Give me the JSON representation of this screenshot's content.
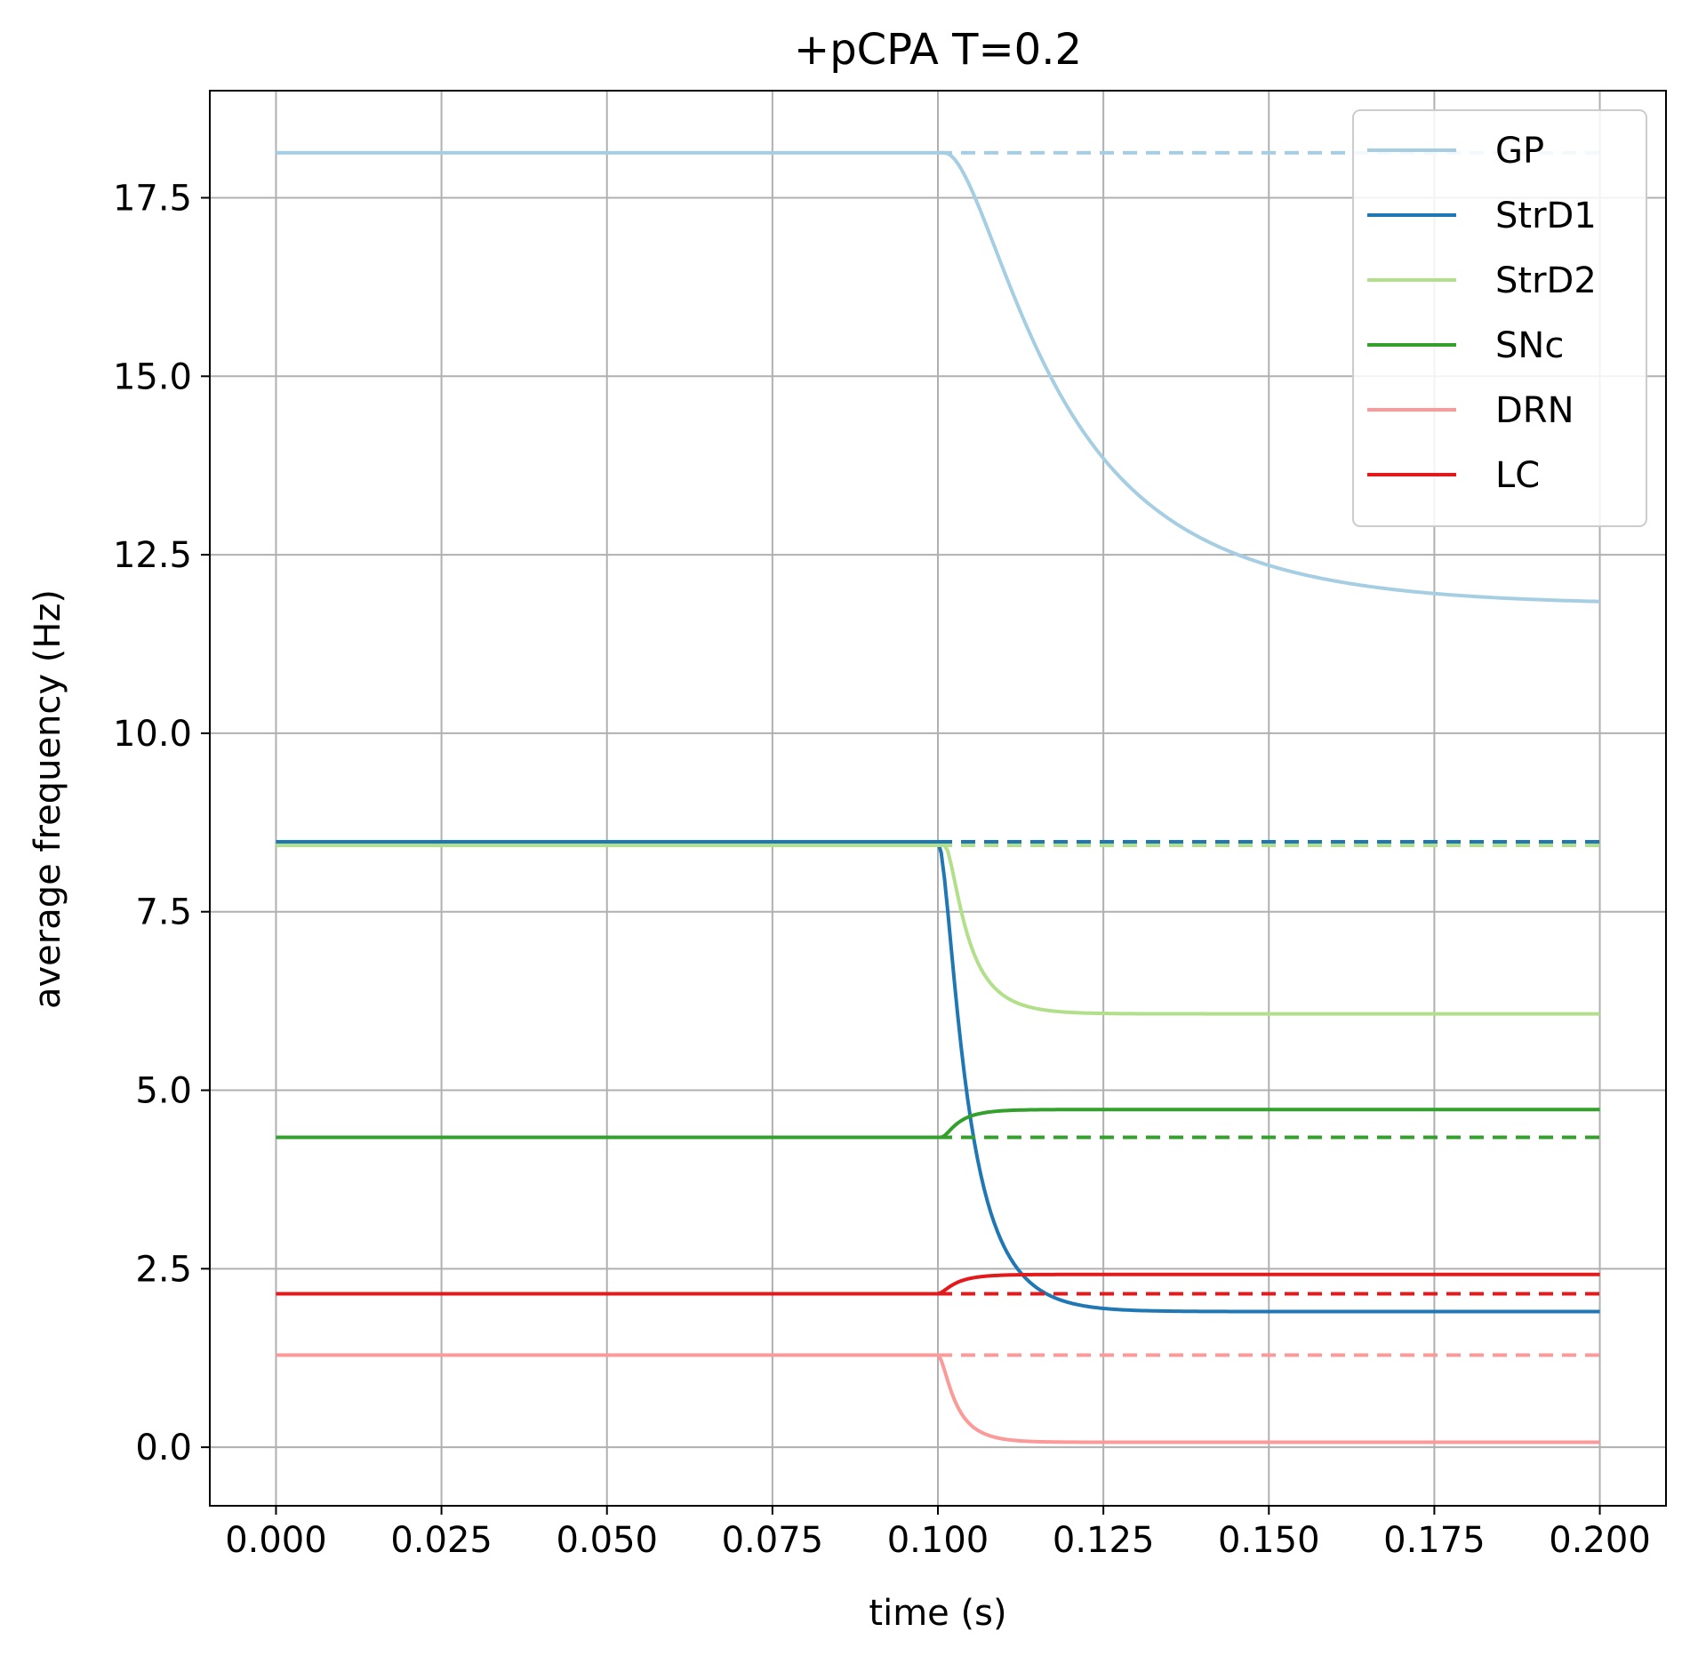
{
  "chart_data": {
    "type": "line",
    "title": "+pCPA T=0.2",
    "xlabel": "time (s)",
    "ylabel": "average frequency (Hz)",
    "xlim": [
      -0.01,
      0.21
    ],
    "ylim": [
      -0.82,
      19.0
    ],
    "xticks": [
      0.0,
      0.025,
      0.05,
      0.075,
      0.1,
      0.125,
      0.15,
      0.175,
      0.2
    ],
    "xtick_labels": [
      "0.000",
      "0.025",
      "0.050",
      "0.075",
      "0.100",
      "0.125",
      "0.150",
      "0.175",
      "0.200"
    ],
    "yticks": [
      0.0,
      2.5,
      5.0,
      7.5,
      10.0,
      12.5,
      15.0,
      17.5
    ],
    "ytick_labels": [
      "0.0",
      "2.5",
      "5.0",
      "7.5",
      "10.0",
      "12.5",
      "15.0",
      "17.5"
    ],
    "grid": true,
    "legend_position": "top-right",
    "perturbation_time": 0.1,
    "end_time": 0.2,
    "series": [
      {
        "name": "GP",
        "color": "#a6cee3",
        "baseline": 18.13,
        "final": 11.8,
        "tau": 0.02,
        "delay": 0.001,
        "style": "solid+dashed-baseline"
      },
      {
        "name": "StrD1",
        "color": "#1f78b4",
        "baseline": 8.48,
        "final": 1.9,
        "tau": 0.005,
        "delay": 0.0,
        "style": "solid+dashed-baseline"
      },
      {
        "name": "StrD2",
        "color": "#b2df8a",
        "baseline": 8.43,
        "final": 6.07,
        "tau": 0.004,
        "delay": 0.001,
        "style": "solid+dashed-baseline"
      },
      {
        "name": "SNc",
        "color": "#33a02c",
        "baseline": 4.34,
        "final": 4.73,
        "tau": 0.003,
        "delay": 0.0005,
        "style": "solid+dashed-baseline"
      },
      {
        "name": "DRN",
        "color": "#fb9a99",
        "baseline": 1.29,
        "final": 0.07,
        "tau": 0.003,
        "delay": 0.0,
        "style": "solid+dashed-baseline"
      },
      {
        "name": "LC",
        "color": "#e31a1c",
        "baseline": 2.15,
        "final": 2.42,
        "tau": 0.003,
        "delay": 0.0,
        "style": "solid+dashed-baseline"
      }
    ]
  }
}
